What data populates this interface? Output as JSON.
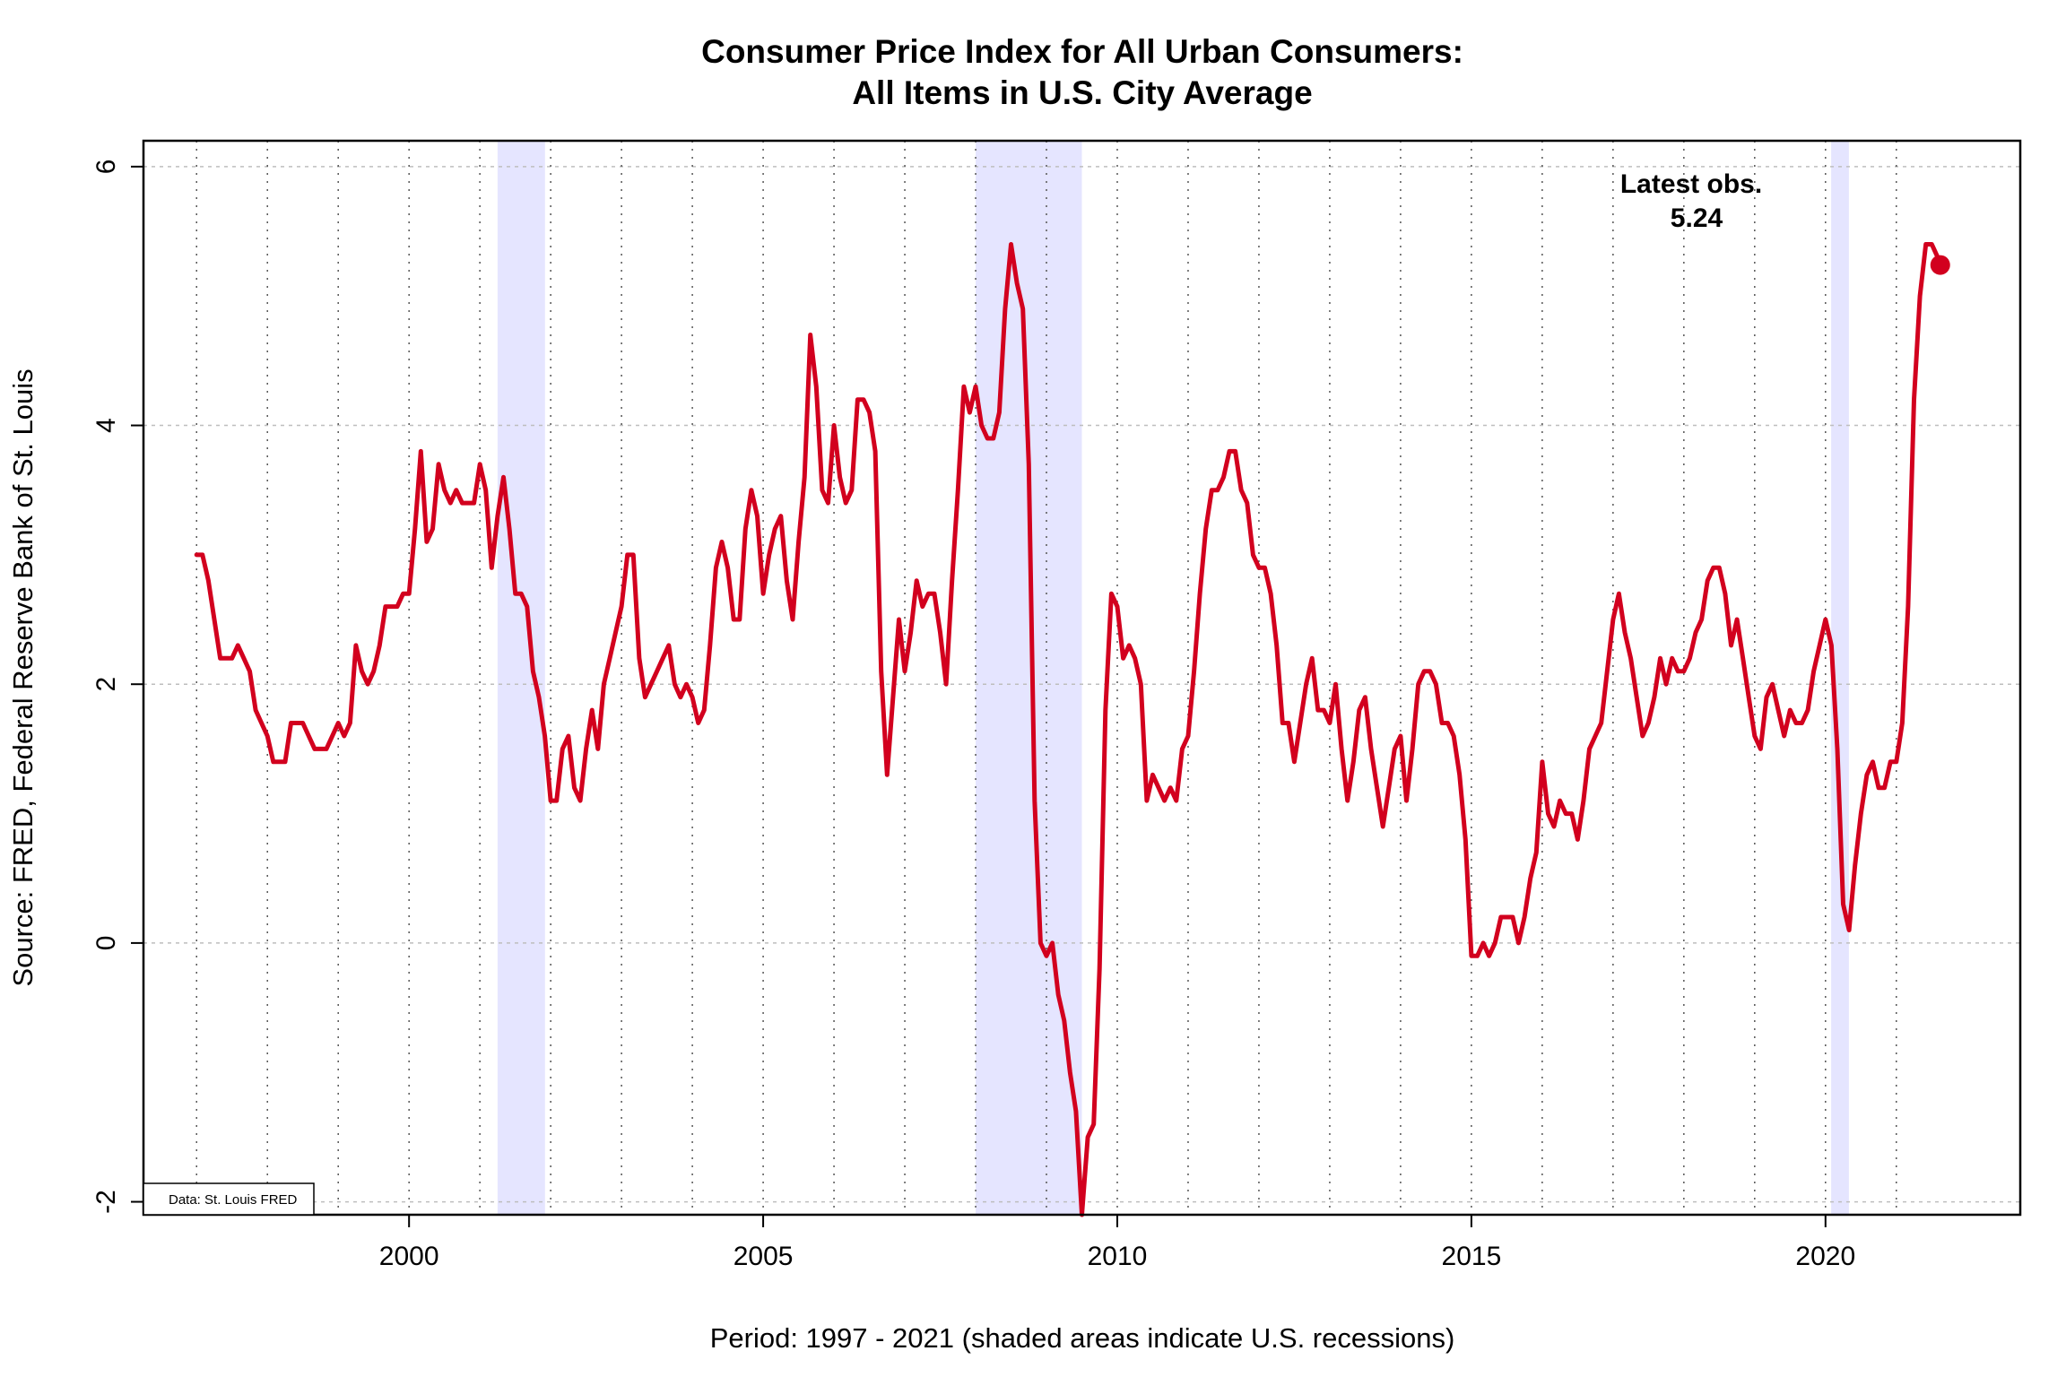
{
  "chart_data": {
    "type": "line",
    "title_lines": [
      "Consumer Price Index for All Urban Consumers:",
      "All Items in U.S. City Average"
    ],
    "ylabel": "Source: FRED, Federal Reserve Bank of St. Louis",
    "xlabel": "Period: 1997 - 2021 (shaded areas indicate U.S. recessions)",
    "credit": "Data: St. Louis FRED",
    "xlim": [
      1996.25,
      2022.75
    ],
    "ylim": [
      -2.1,
      6.2
    ],
    "x_ticks": [
      2000,
      2005,
      2010,
      2015,
      2020
    ],
    "y_ticks": [
      -2,
      0,
      2,
      4,
      6
    ],
    "grid": true,
    "colors": {
      "line": "#d2001e",
      "recession": "#e5e5ff",
      "grid": "#bebebe"
    },
    "recessions": [
      [
        2001.25,
        2001.92
      ],
      [
        2008.0,
        2009.5
      ],
      [
        2020.08,
        2020.33
      ]
    ],
    "latest": {
      "label": "Latest obs.",
      "value": "5.24",
      "x": 2021.62,
      "y": 5.24
    },
    "series": [
      {
        "start": 1997.0,
        "step": 0.0833333,
        "values": [
          3.0,
          3.0,
          2.8,
          2.5,
          2.2,
          2.2,
          2.2,
          2.3,
          2.2,
          2.1,
          1.8,
          1.7,
          1.6,
          1.4,
          1.4,
          1.4,
          1.7,
          1.7,
          1.7,
          1.6,
          1.5,
          1.5,
          1.5,
          1.6,
          1.7,
          1.6,
          1.7,
          2.3,
          2.1,
          2.0,
          2.1,
          2.3,
          2.6,
          2.6,
          2.6,
          2.7,
          2.7,
          3.2,
          3.8,
          3.1,
          3.2,
          3.7,
          3.5,
          3.4,
          3.5,
          3.4,
          3.4,
          3.4,
          3.7,
          3.5,
          2.9,
          3.3,
          3.6,
          3.2,
          2.7,
          2.7,
          2.6,
          2.1,
          1.9,
          1.6,
          1.1,
          1.1,
          1.5,
          1.6,
          1.2,
          1.1,
          1.5,
          1.8,
          1.5,
          2.0,
          2.2,
          2.4,
          2.6,
          3.0,
          3.0,
          2.2,
          1.9,
          2.0,
          2.1,
          2.2,
          2.3,
          2.0,
          1.9,
          2.0,
          1.9,
          1.7,
          1.8,
          2.3,
          2.9,
          3.1,
          2.9,
          2.5,
          2.5,
          3.2,
          3.5,
          3.3,
          2.7,
          3.0,
          3.2,
          3.3,
          2.8,
          2.5,
          3.1,
          3.6,
          4.7,
          4.3,
          3.5,
          3.4,
          4.0,
          3.6,
          3.4,
          3.5,
          4.2,
          4.2,
          4.1,
          3.8,
          2.1,
          1.3,
          1.9,
          2.5,
          2.1,
          2.4,
          2.8,
          2.6,
          2.7,
          2.7,
          2.4,
          2.0,
          2.8,
          3.5,
          4.3,
          4.1,
          4.3,
          4.0,
          3.9,
          3.9,
          4.1,
          4.9,
          5.4,
          5.1,
          4.9,
          3.7,
          1.1,
          -0.0,
          -0.1,
          -0.0,
          -0.4,
          -0.6,
          -1.0,
          -1.3,
          -2.1,
          -1.5,
          -1.4,
          -0.2,
          1.8,
          2.7,
          2.6,
          2.2,
          2.3,
          2.2,
          2.0,
          1.1,
          1.3,
          1.2,
          1.1,
          1.2,
          1.1,
          1.5,
          1.6,
          2.1,
          2.7,
          3.2,
          3.5,
          3.5,
          3.6,
          3.8,
          3.8,
          3.5,
          3.4,
          3.0,
          2.9,
          2.9,
          2.7,
          2.3,
          1.7,
          1.7,
          1.4,
          1.7,
          2.0,
          2.2,
          1.8,
          1.8,
          1.7,
          2.0,
          1.5,
          1.1,
          1.4,
          1.8,
          1.9,
          1.5,
          1.2,
          0.9,
          1.2,
          1.5,
          1.6,
          1.1,
          1.5,
          2.0,
          2.1,
          2.1,
          2.0,
          1.7,
          1.7,
          1.6,
          1.3,
          0.8,
          -0.1,
          -0.1,
          -0.0,
          -0.1,
          0.0,
          0.2,
          0.2,
          0.2,
          0.0,
          0.2,
          0.5,
          0.7,
          1.4,
          1.0,
          0.9,
          1.1,
          1.0,
          1.0,
          0.8,
          1.1,
          1.5,
          1.6,
          1.7,
          2.1,
          2.5,
          2.7,
          2.4,
          2.2,
          1.9,
          1.6,
          1.7,
          1.9,
          2.2,
          2.0,
          2.2,
          2.1,
          2.1,
          2.2,
          2.4,
          2.5,
          2.8,
          2.9,
          2.9,
          2.7,
          2.3,
          2.5,
          2.2,
          1.9,
          1.6,
          1.5,
          1.9,
          2.0,
          1.8,
          1.6,
          1.8,
          1.7,
          1.7,
          1.8,
          2.1,
          2.3,
          2.5,
          2.3,
          1.5,
          0.3,
          0.1,
          0.6,
          1.0,
          1.3,
          1.4,
          1.2,
          1.2,
          1.4,
          1.4,
          1.7,
          2.6,
          4.2,
          5.0,
          5.4,
          5.4,
          5.3,
          5.2
        ]
      }
    ]
  }
}
